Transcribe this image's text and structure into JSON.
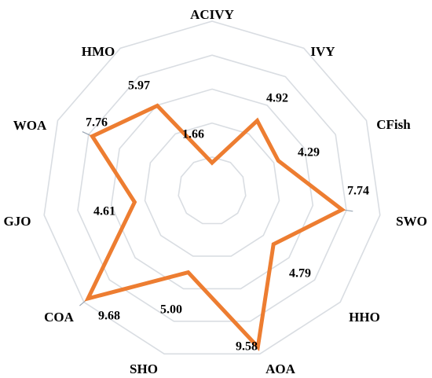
{
  "chart_data": {
    "type": "radar",
    "categories": [
      "ACIVY",
      "IVY",
      "CFish",
      "SWO",
      "HHO",
      "AOA",
      "SHO",
      "COA",
      "GJO",
      "WOA",
      "HMO"
    ],
    "values": [
      1.66,
      4.92,
      4.29,
      7.74,
      4.79,
      9.58,
      5.0,
      9.68,
      4.61,
      7.76,
      5.97
    ],
    "value_labels": [
      "1.66",
      "4.92",
      "4.29",
      "7.74",
      "4.79",
      "9.58",
      "5.00",
      "9.68",
      "4.61",
      "7.76",
      "5.97"
    ],
    "rlim": [
      0,
      10
    ],
    "grid": true,
    "series_color": "#ED7D31",
    "grid_color": "#D9DDE2"
  }
}
